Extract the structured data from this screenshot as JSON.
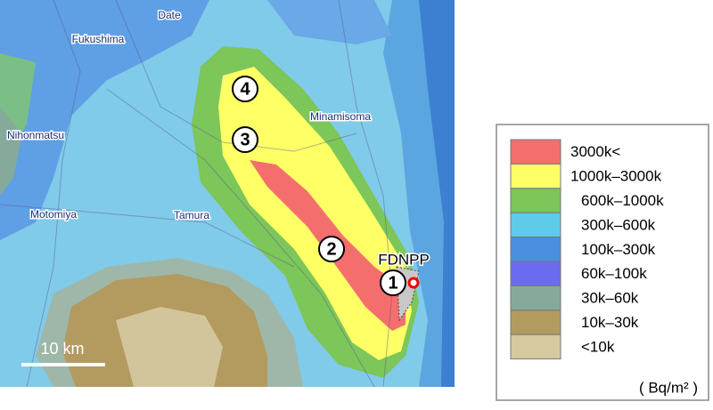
{
  "places": [
    "Date",
    "Fukushima",
    "Nihonmatsu",
    "Motomiya",
    "Tamura",
    "Minamisoma"
  ],
  "markers": [
    "1",
    "2",
    "3",
    "4"
  ],
  "site": "FDNPP",
  "scale_bar": "10 km",
  "legend": {
    "items": [
      {
        "label": "3000k<",
        "color": "#f46e6e"
      },
      {
        "label": "1000k–3000k",
        "color": "#ffff66"
      },
      {
        "label": "600k–1000k",
        "color": "#7cc65a"
      },
      {
        "label": "300k–600k",
        "color": "#5ecbea"
      },
      {
        "label": "100k–300k",
        "color": "#4a8fe0"
      },
      {
        "label": "60k–100k",
        "color": "#6b6bf0"
      },
      {
        "label": "30k–60k",
        "color": "#86aa99"
      },
      {
        "label": "10k–30k",
        "color": "#b39b60"
      },
      {
        "label": "<10k",
        "color": "#d6c9a0"
      }
    ],
    "unit": "( Bq/m² )"
  }
}
